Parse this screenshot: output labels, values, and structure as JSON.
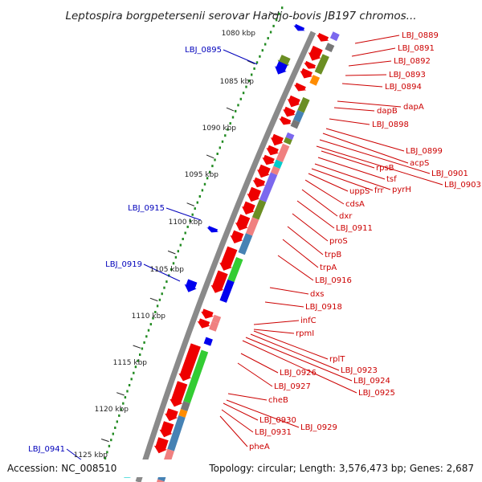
{
  "title": "Leptospira borgpetersenii serovar Hardjo-bovis JB197 chromos...",
  "accession": "Accession: NC_008510",
  "topology": "Topology: circular; Length: 3,576,473 bp; Genes: 2,687",
  "colors": {
    "backbone": "#888888",
    "forward_label": "#0000bb",
    "reverse_label": "#cc0000",
    "gc_dots": "#228b22",
    "red": "#ee0000",
    "pink": "#f08080",
    "green": "#33cc33",
    "olive": "#6b8e23",
    "steel": "#4682b4",
    "slate": "#7b68ee",
    "blue": "#0000ee",
    "grey": "#777777",
    "orange": "#ff8c00",
    "cyan": "#00cccc"
  },
  "scale_labels": [
    "1080 kbp",
    "1085 kbp",
    "1090 kbp",
    "1095 kbp",
    "1100 kbp",
    "1105 kbp",
    "1110 kbp",
    "1115 kbp",
    "1120 kbp",
    "1125 kbp"
  ],
  "forward_labels": [
    "LBJ_0895",
    "LBJ_0915",
    "LBJ_0919",
    "LBJ_0941"
  ],
  "reverse_labels": [
    "LBJ_0889",
    "LBJ_0891",
    "LBJ_0892",
    "LBJ_0893",
    "LBJ_0894",
    "dapA",
    "dapB",
    "LBJ_0898",
    "LBJ_0899",
    "acpS",
    "LBJ_0901",
    "LBJ_0903",
    "rpsB",
    "tsf",
    "pyrH",
    "frr",
    "uppS",
    "cdsA",
    "dxr",
    "LBJ_0911",
    "proS",
    "trpB",
    "trpA",
    "LBJ_0916",
    "dxs",
    "LBJ_0918",
    "infC",
    "rpmI",
    "rplT",
    "LBJ_0923",
    "LBJ_0924",
    "LBJ_0925",
    "LBJ_0926",
    "LBJ_0927",
    "cheB",
    "LBJ_0930",
    "LBJ_0929",
    "LBJ_0931",
    "pheA"
  ]
}
